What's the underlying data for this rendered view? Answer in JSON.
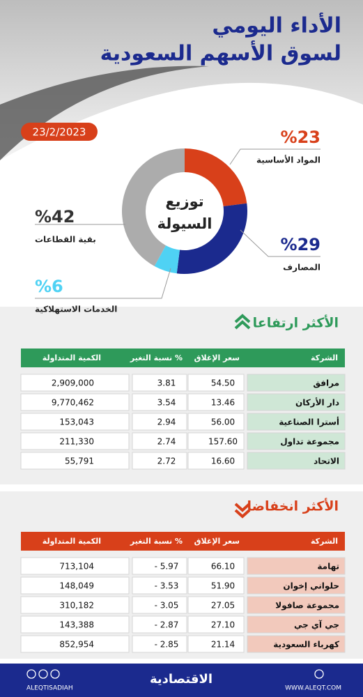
{
  "header": {
    "title_lines": [
      "الأداء اليومي",
      "لسوق الأسهم السعودية"
    ],
    "date": "23/2/2023"
  },
  "donut": {
    "title_lines": [
      "توزيع",
      "السيولة"
    ],
    "segments": [
      {
        "label": "المواد الأساسية",
        "value": 23,
        "value_label": "%23",
        "color": "#d8401a"
      },
      {
        "label": "المصارف",
        "value": 29,
        "value_label": "%29",
        "color": "#1b2a8e"
      },
      {
        "label": "الخدمات الاستهلاكية",
        "value": 6,
        "value_label": "%6",
        "color": "#4fd2f4"
      },
      {
        "label": "بقية القطاعات",
        "value": 42,
        "value_label": "%42",
        "color": "#acacac"
      }
    ]
  },
  "gainers": {
    "title": "الأكثر ارتفاعا",
    "columns": [
      "الشركة",
      "سعر الإغلاق",
      "نسبة التغير %",
      "الكمية المتداولة"
    ],
    "rows": [
      [
        "مرافق",
        "54.50",
        "3.81",
        "2,909,000"
      ],
      [
        "دار الأركان",
        "13.46",
        "3.54",
        "9,770,462"
      ],
      [
        "أسترا الصناعية",
        "56.00",
        "2.94",
        "153,043"
      ],
      [
        "مجموعة تداول",
        "157.60",
        "2.74",
        "211,330"
      ],
      [
        "الاتحاد",
        "16.60",
        "2.72",
        "55,791"
      ]
    ]
  },
  "losers": {
    "title": "الأكثر انخفاضا",
    "columns": [
      "الشركة",
      "سعر الإغلاق",
      "نسبة التغير %",
      "الكمية المتداولة"
    ],
    "rows": [
      [
        "تهامة",
        "66.10",
        "- 5.97",
        "713,104"
      ],
      [
        "حلواني إخوان",
        "51.90",
        "- 3.53",
        "148,049"
      ],
      [
        "مجموعة صافولا",
        "27.05",
        "- 3.05",
        "310,182"
      ],
      [
        "جي آي جي",
        "27.10",
        "- 2.87",
        "143,388"
      ],
      [
        "كهرباء السعودية",
        "21.14",
        "- 2.85",
        "852,954"
      ]
    ]
  },
  "footer": {
    "handle": "ALEQTISADIAH",
    "logo": "الاقتصادية",
    "url": "WWW.ALEQT.COM"
  }
}
